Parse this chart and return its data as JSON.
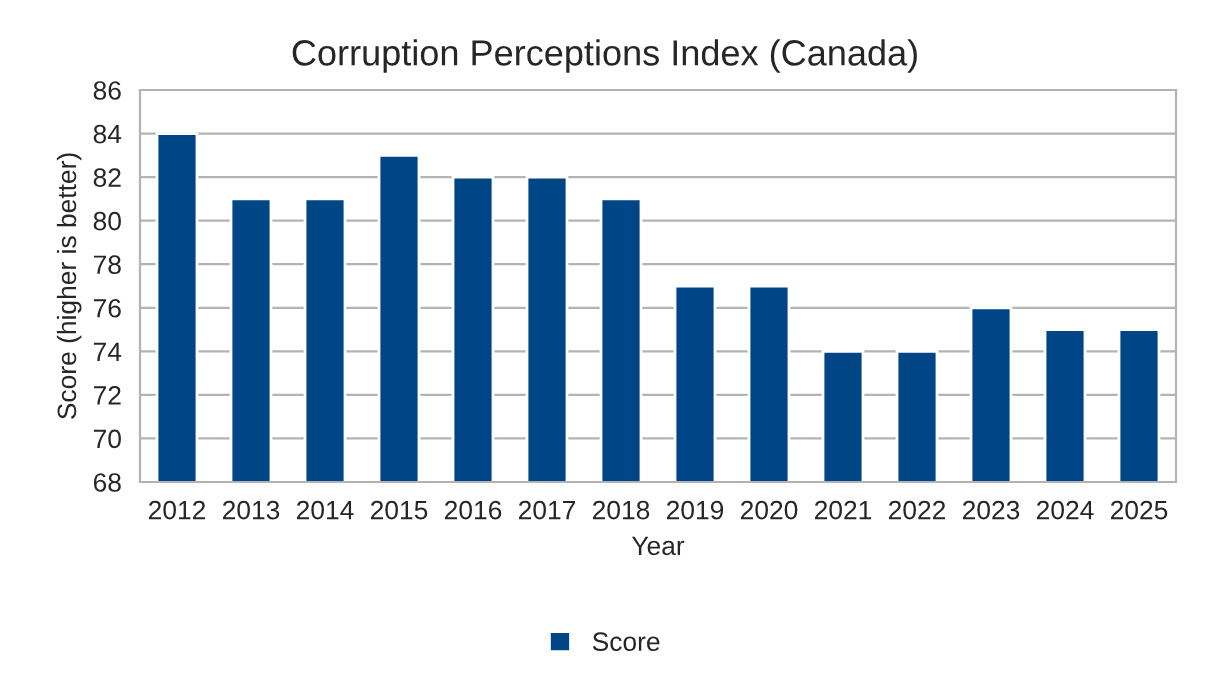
{
  "chart_data": {
    "type": "bar",
    "title": "Corruption Perceptions Index (Canada)",
    "xlabel": "Year",
    "ylabel": "Score (higher is better)",
    "categories": [
      "2012",
      "2013",
      "2014",
      "2015",
      "2016",
      "2017",
      "2018",
      "2019",
      "2020",
      "2021",
      "2022",
      "2023",
      "2024",
      "2025"
    ],
    "series": [
      {
        "name": "Score",
        "color": "#004586",
        "values": [
          84,
          81,
          81,
          83,
          82,
          82,
          81,
          77,
          77,
          74,
          74,
          76,
          75,
          75
        ]
      }
    ],
    "ylim": [
      68,
      86
    ],
    "yticks": [
      68,
      70,
      72,
      74,
      76,
      78,
      80,
      82,
      84,
      86
    ],
    "grid": "y",
    "legend": "bottom"
  }
}
